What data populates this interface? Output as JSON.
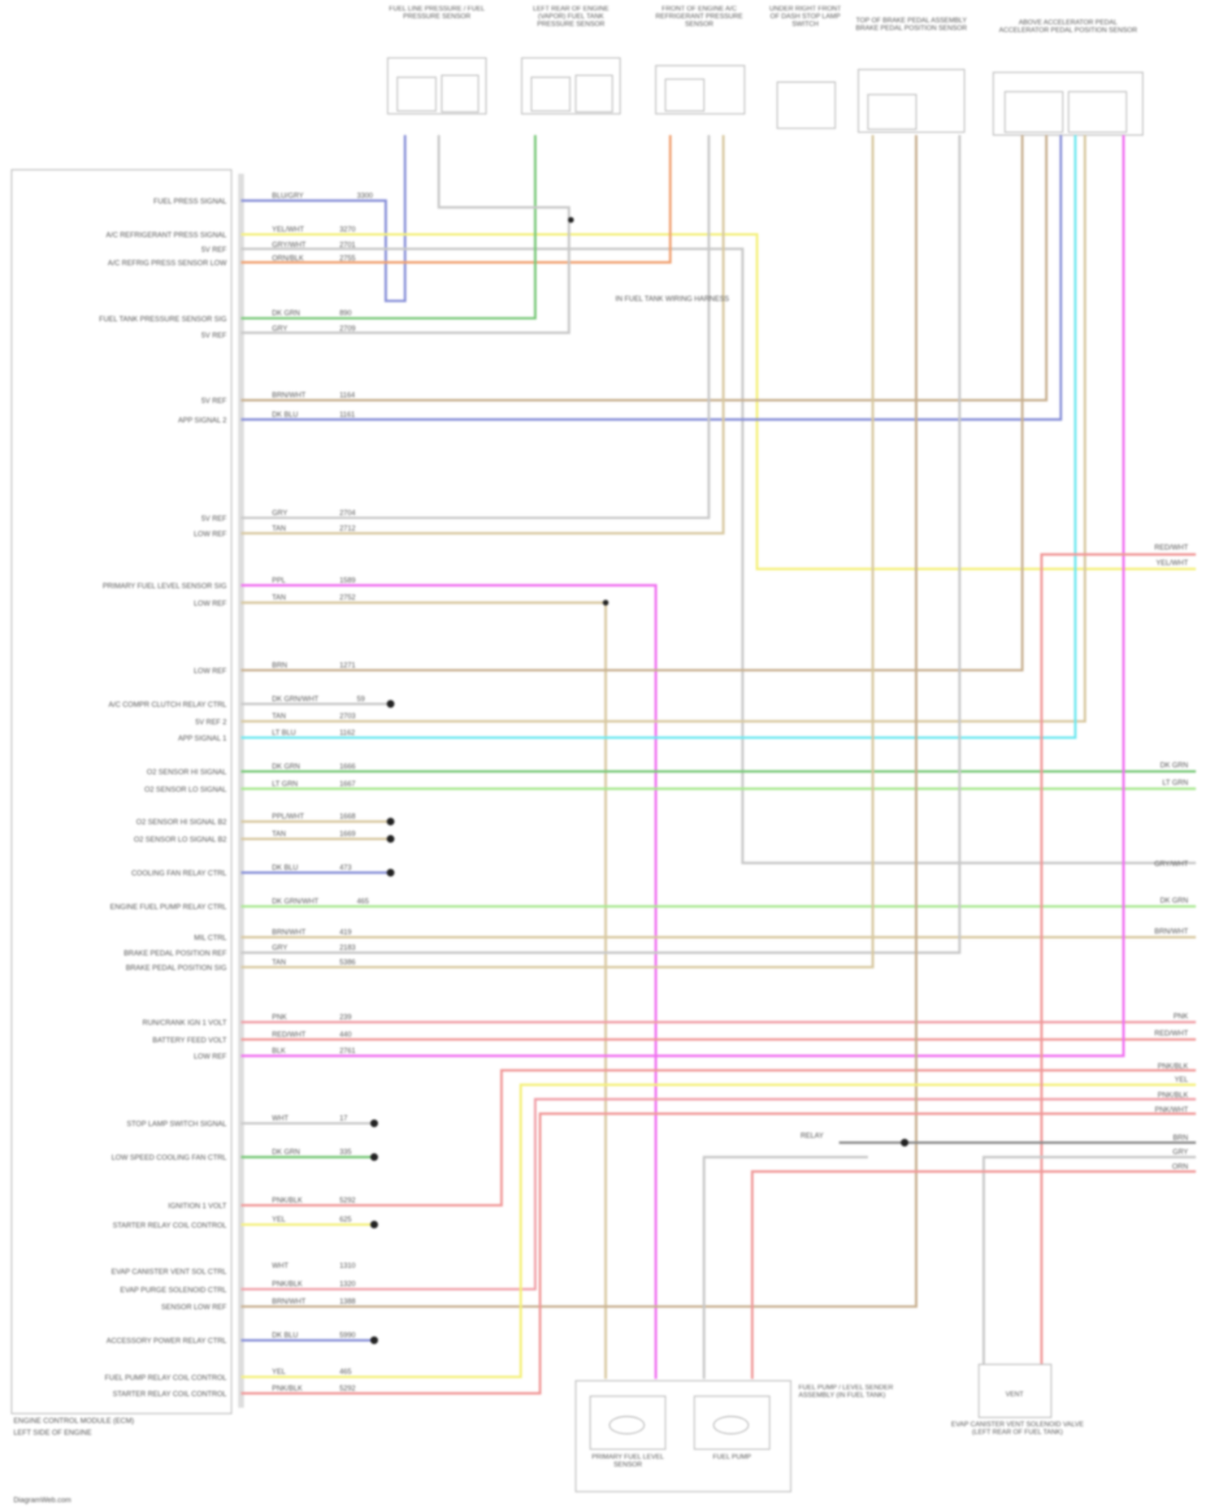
{
  "module": {
    "footer_line1": "ENGINE CONTROL MODULE (ECM)",
    "footer_line2": "LEFT SIDE OF ENGINE"
  },
  "pins": [
    "FUEL PRESS SIGNAL",
    "A/C REFRIGERANT PRESS SIGNAL",
    "5V REF",
    "A/C REFRIG PRESS SENSOR LOW",
    "FUEL TANK PRESSURE SENSOR SIG",
    "5V REF",
    "5V REF",
    "APP SIGNAL 2",
    "5V REF",
    "LOW REF",
    "PRIMARY FUEL LEVEL SENSOR SIG",
    "LOW REF",
    "LOW REF",
    "A/C COMPR CLUTCH RELAY CTRL",
    "5V REF 2",
    "APP SIGNAL 1",
    "O2 SENSOR HI SIGNAL",
    "O2 SENSOR LO SIGNAL",
    "O2 SENSOR HI SIGNAL B2",
    "O2 SENSOR LO SIGNAL B2",
    "COOLING FAN RELAY CTRL",
    "ENGINE FUEL PUMP RELAY CTRL",
    "MIL CTRL",
    "BRAKE PEDAL POSITION REF",
    "BRAKE PEDAL POSITION SIG",
    "RUN/CRANK IGN 1 VOLT",
    "BATTERY FEED VOLT",
    "LOW REF",
    "STOP LAMP SWITCH SIGNAL",
    "LOW SPEED COOLING FAN CTRL",
    "IGNITION 1 VOLT",
    "STARTER RELAY COIL CONTROL",
    "EVAP CANISTER VENT SOL CTRL",
    "EVAP PURGE SOLENOID CTRL",
    "SENSOR LOW REF",
    "ACCESSORY POWER RELAY CTRL",
    "FUEL PUMP RELAY COIL CONTROL",
    "STARTER RELAY COIL CONTROL"
  ],
  "wire_colors": {
    "blue": "#8890d8",
    "yellow": "#f4f07a",
    "gray": "#c8c8c8",
    "orange": "#f0a070",
    "green": "#78c878",
    "tan": "#d8c8a0",
    "magenta": "#f070f0",
    "brown": "#c8b090",
    "cyan": "#70e8f0",
    "lightgreen": "#a8e890",
    "pink": "#f0a0a8",
    "salmon": "#f09898"
  },
  "wires": [
    {
      "color": "BLU/GRY",
      "circuit": "3300"
    },
    {
      "color": "YEL/WHT",
      "circuit": "3270"
    },
    {
      "color": "GRY/WHT",
      "circuit": "2701"
    },
    {
      "color": "ORN/BLK",
      "circuit": "2755"
    },
    {
      "color": "DK GRN",
      "circuit": "890"
    },
    {
      "color": "GRY",
      "circuit": "2709"
    },
    {
      "color": "BRN/WHT",
      "circuit": "1164"
    },
    {
      "color": "DK BLU",
      "circuit": "1161"
    },
    {
      "color": "GRY",
      "circuit": "2704"
    },
    {
      "color": "TAN",
      "circuit": "2712"
    },
    {
      "color": "PPL",
      "circuit": "1589"
    },
    {
      "color": "TAN",
      "circuit": "2752"
    },
    {
      "color": "BRN",
      "circuit": "1271"
    },
    {
      "color": "DK GRN/WHT",
      "circuit": "59"
    },
    {
      "color": "TAN",
      "circuit": "2703"
    },
    {
      "color": "LT BLU",
      "circuit": "1162"
    },
    {
      "color": "DK GRN",
      "circuit": "1666"
    },
    {
      "color": "LT GRN",
      "circuit": "1667"
    },
    {
      "color": "PPL/WHT",
      "circuit": "1668"
    },
    {
      "color": "TAN",
      "circuit": "1669"
    },
    {
      "color": "DK BLU",
      "circuit": "473"
    },
    {
      "color": "DK GRN/WHT",
      "circuit": "465"
    },
    {
      "color": "BRN/WHT",
      "circuit": "419"
    },
    {
      "color": "GRY",
      "circuit": "2183"
    },
    {
      "color": "TAN",
      "circuit": "5386"
    },
    {
      "color": "PNK",
      "circuit": "239"
    },
    {
      "color": "RED/WHT",
      "circuit": "440"
    },
    {
      "color": "BLK",
      "circuit": "2761"
    },
    {
      "color": "WHT",
      "circuit": "17"
    },
    {
      "color": "DK GRN",
      "circuit": "335"
    },
    {
      "color": "PNK/BLK",
      "circuit": "5292"
    },
    {
      "color": "YEL",
      "circuit": "625"
    },
    {
      "color": "WHT",
      "circuit": "1310"
    },
    {
      "color": "PNK/BLK",
      "circuit": "1320"
    },
    {
      "color": "BRN/WHT",
      "circuit": "1388"
    },
    {
      "color": "DK BLU",
      "circuit": "5990"
    },
    {
      "color": "YEL",
      "circuit": "465"
    },
    {
      "color": "PNK/BLK",
      "circuit": "5292"
    }
  ],
  "components": [
    {
      "title": "FUEL LINE PRESSURE / FUEL PRESSURE SENSOR"
    },
    {
      "title": "LEFT REAR OF ENGINE (VAPOR) FUEL TANK PRESSURE SENSOR"
    },
    {
      "title": "FRONT OF ENGINE A/C REFRIGERANT PRESSURE SENSOR"
    },
    {
      "title": "UNDER RIGHT FRONT OF DASH STOP LAMP SWITCH"
    },
    {
      "title": "TOP OF BRAKE PEDAL ASSEMBLY BRAKE PEDAL POSITION SENSOR"
    },
    {
      "title": "ABOVE ACCELERATOR PEDAL ACCELERATOR PEDAL POSITION SENSOR"
    }
  ],
  "splice_note": "IN FUEL TANK WIRING HARNESS",
  "bottom": {
    "module_note": "FUEL PUMP / LEVEL SENDER ASSEMBLY (IN FUEL TANK)",
    "sensor_label": "PRIMARY FUEL LEVEL SENSOR",
    "pump_label": "FUEL PUMP",
    "evap_label": "EVAP CANISTER VENT SOLENOID VALVE (LEFT REAR OF FUEL TANK)",
    "evap_box": "VENT"
  },
  "right_labels": [
    "RED/WHT",
    "YEL/WHT",
    "DK GRN",
    "LT GRN",
    "GRY/WHT",
    "DK GRN",
    "BRN/WHT",
    "PNK",
    "RED/WHT",
    "PNK/BLK",
    "YEL",
    "PNK/BLK",
    "PNK/WHT",
    "BRN",
    "GRY",
    "ORN"
  ],
  "relay_label": "RELAY",
  "watermark": "DiagramWeb.com"
}
